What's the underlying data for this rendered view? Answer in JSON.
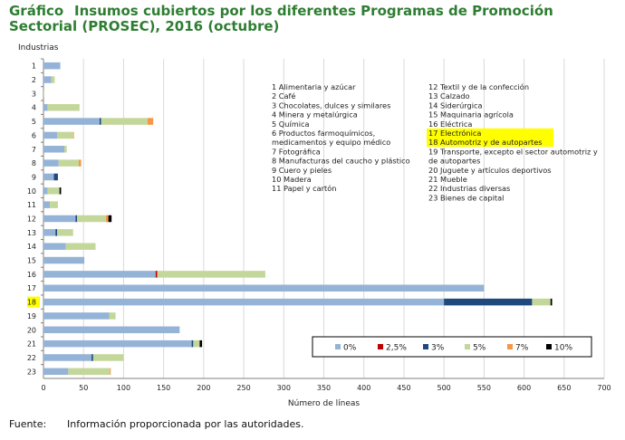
{
  "header": {
    "label": "Gráfico",
    "title": "Insumos cubiertos por los diferentes Programas de Promoción Sectorial (PROSEC), 2016 (octubre)"
  },
  "footer": {
    "source_label": "Fuente:",
    "source_text": "Información proporcionada por las autoridades."
  },
  "chart_data": {
    "type": "bar",
    "orientation": "horizontal",
    "stacked": true,
    "ylabel": "Industrias",
    "xlabel": "Número de líneas",
    "xlim": [
      0,
      700
    ],
    "x_ticks": [
      0,
      50,
      100,
      150,
      200,
      250,
      300,
      350,
      400,
      450,
      500,
      550,
      600,
      650,
      700
    ],
    "grid": true,
    "legend_position": "bottom-right",
    "categories": [
      "1",
      "2",
      "3",
      "4",
      "5",
      "6",
      "7",
      "8",
      "9",
      "10",
      "11",
      "12",
      "13",
      "14",
      "15",
      "16",
      "17",
      "18",
      "19",
      "20",
      "21",
      "22",
      "23"
    ],
    "highlighted_category": "18",
    "series": [
      {
        "name": "0%",
        "color": "#95b3d7",
        "values": [
          21,
          10,
          0,
          5,
          70,
          17,
          26,
          19,
          13,
          5,
          8,
          40,
          15,
          28,
          51,
          140,
          550,
          500,
          82,
          170,
          185,
          60,
          31
        ]
      },
      {
        "name": "2,5%",
        "color": "#c00000",
        "values": [
          0,
          0,
          0,
          0,
          0,
          0,
          0,
          0,
          0,
          0,
          0,
          0,
          0,
          0,
          0,
          2,
          0,
          0,
          0,
          0,
          0,
          0,
          0
        ]
      },
      {
        "name": "3%",
        "color": "#1f497d",
        "values": [
          0,
          0,
          0,
          0,
          2,
          0,
          0,
          0,
          5,
          0,
          0,
          2,
          2,
          0,
          0,
          0,
          0,
          110,
          0,
          0,
          2,
          2,
          0
        ]
      },
      {
        "name": "5%",
        "color": "#c4d79b",
        "values": [
          0,
          4,
          1,
          40,
          58,
          20,
          3,
          25,
          0,
          15,
          10,
          36,
          20,
          37,
          0,
          135,
          0,
          23,
          8,
          0,
          8,
          38,
          52
        ]
      },
      {
        "name": "7%",
        "color": "#f79646",
        "values": [
          0,
          0,
          0,
          0,
          7,
          1,
          0,
          3,
          0,
          0,
          0,
          3,
          0,
          0,
          0,
          0,
          0,
          0,
          0,
          0,
          0,
          0,
          1
        ]
      },
      {
        "name": "10%",
        "color": "#000000",
        "values": [
          0,
          0,
          0,
          0,
          0,
          0,
          0,
          0,
          0,
          2,
          0,
          4,
          0,
          0,
          0,
          0,
          0,
          2,
          0,
          0,
          3,
          0,
          0
        ]
      }
    ],
    "annotations_left": [
      "1 Alimentaria y azúcar",
      "2 Café",
      "3 Chocolates, dulces y similares",
      "4 Minera y metalúrgica",
      "5 Química",
      "6 Productos farmoquímicos,",
      "   medicamentos y equipo médico",
      "7 Fotográfica",
      "8 Manufacturas del caucho y plástico",
      "9 Cuero y pieles",
      "10 Madera",
      "11 Papel y cartón"
    ],
    "annotations_right": [
      "12 Textil y de la confección",
      "13 Calzado",
      "14 Siderúrgica",
      "15 Maquinaria agrícola",
      "16 Eléctrica",
      "17 Electrónica",
      "18 Automotriz y de autopartes",
      "19 Transporte, excepto el sector automotriz y",
      "     de autopartes",
      "20 Juguete y artículos deportivos",
      "21 Mueble",
      "22 Industrias diversas",
      "23 Bienes de capital"
    ],
    "highlighted_annotations": [
      5,
      6
    ]
  }
}
